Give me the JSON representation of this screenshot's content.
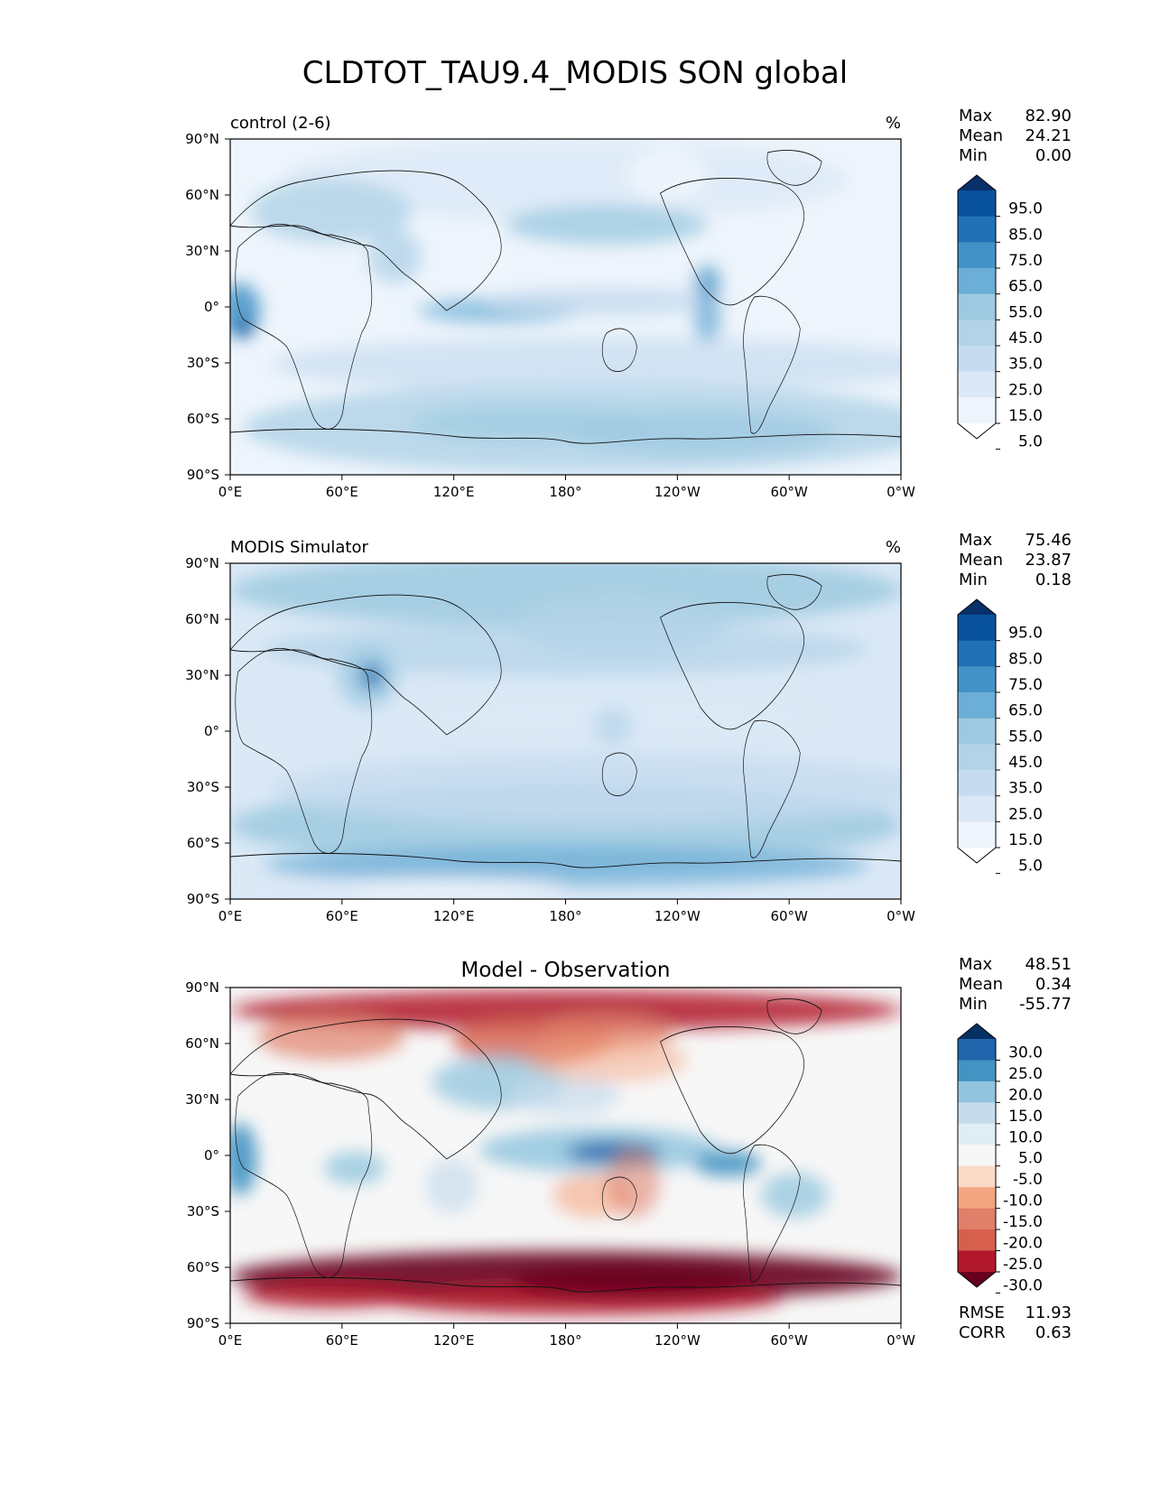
{
  "figure": {
    "title": "CLDTOT_TAU9.4_MODIS SON global"
  },
  "chart_data": [
    {
      "type": "heatmap",
      "id": "control",
      "title": "",
      "left_title": "control (2-6)",
      "units": "%",
      "x_ticks": [
        "0°E",
        "60°E",
        "120°E",
        "180°",
        "120°W",
        "60°W",
        "0°W"
      ],
      "y_ticks": [
        "90°N",
        "60°N",
        "30°N",
        "0°",
        "30°S",
        "60°S",
        "90°S"
      ],
      "xlim": [
        0,
        360
      ],
      "ylim": [
        -90,
        90
      ],
      "stats": [
        {
          "label": "Max",
          "value": "82.90"
        },
        {
          "label": "Mean",
          "value": "24.21"
        },
        {
          "label": "Min",
          "value": "0.00"
        }
      ],
      "colorbar": {
        "levels": [
          "95.0",
          "85.0",
          "75.0",
          "65.0",
          "55.0",
          "45.0",
          "35.0",
          "25.0",
          "15.0",
          "5.0"
        ],
        "colors": [
          "#08306b",
          "#08519c",
          "#2171b5",
          "#4292c6",
          "#6baed6",
          "#9ecae1",
          "#b3d3e8",
          "#c6dbef",
          "#dbe9f6",
          "#eef5fc",
          "#ffffff"
        ]
      }
    },
    {
      "type": "heatmap",
      "id": "obs",
      "title": "",
      "left_title": "MODIS Simulator",
      "units": "%",
      "x_ticks": [
        "0°E",
        "60°E",
        "120°E",
        "180°",
        "120°W",
        "60°W",
        "0°W"
      ],
      "y_ticks": [
        "90°N",
        "60°N",
        "30°N",
        "0°",
        "30°S",
        "60°S",
        "90°S"
      ],
      "xlim": [
        0,
        360
      ],
      "ylim": [
        -90,
        90
      ],
      "stats": [
        {
          "label": "Max",
          "value": "75.46"
        },
        {
          "label": "Mean",
          "value": "23.87"
        },
        {
          "label": "Min",
          "value": "0.18"
        }
      ],
      "colorbar": {
        "levels": [
          "95.0",
          "85.0",
          "75.0",
          "65.0",
          "55.0",
          "45.0",
          "35.0",
          "25.0",
          "15.0",
          "5.0"
        ],
        "colors": [
          "#08306b",
          "#08519c",
          "#2171b5",
          "#4292c6",
          "#6baed6",
          "#9ecae1",
          "#b3d3e8",
          "#c6dbef",
          "#dbe9f6",
          "#eef5fc",
          "#ffffff"
        ]
      }
    },
    {
      "type": "heatmap",
      "id": "diff",
      "title": "Model - Observation",
      "left_title": "",
      "units": "",
      "x_ticks": [
        "0°E",
        "60°E",
        "120°E",
        "180°",
        "120°W",
        "60°W",
        "0°W"
      ],
      "y_ticks": [
        "90°N",
        "60°N",
        "30°N",
        "0°",
        "30°S",
        "60°S",
        "90°S"
      ],
      "xlim": [
        0,
        360
      ],
      "ylim": [
        -90,
        90
      ],
      "stats": [
        {
          "label": "Max",
          "value": "48.51"
        },
        {
          "label": "Mean",
          "value": "0.34"
        },
        {
          "label": "Min",
          "value": "-55.77"
        }
      ],
      "extra_stats": [
        {
          "label": "RMSE",
          "value": "11.93"
        },
        {
          "label": "CORR",
          "value": "0.63"
        }
      ],
      "colorbar": {
        "levels": [
          "30.0",
          "25.0",
          "20.0",
          "15.0",
          "10.0",
          "5.0",
          "-5.0",
          "-10.0",
          "-15.0",
          "-20.0",
          "-25.0",
          "-30.0"
        ],
        "colors": [
          "#053061",
          "#2166ac",
          "#4393c3",
          "#92c5de",
          "#c6dcec",
          "#e1edf4",
          "#f7f7f7",
          "#fbd9c7",
          "#f4a582",
          "#e07f6a",
          "#d6604d",
          "#b2182b",
          "#67001f"
        ]
      }
    }
  ]
}
